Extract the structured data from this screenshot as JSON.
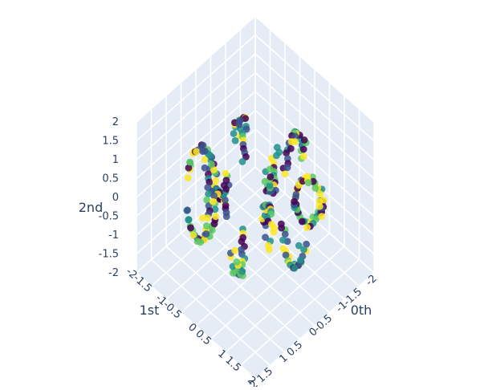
{
  "chart_data": {
    "type": "scatter3d",
    "axes": {
      "x": {
        "title": "0th",
        "ticks": [
          "-2",
          "-1.5",
          "-1",
          "-0.5",
          "0",
          "0.5",
          "1",
          "1.5",
          "2"
        ],
        "range": [
          -2,
          2
        ]
      },
      "y": {
        "title": "1st",
        "ticks": [
          "-2",
          "-1.5",
          "-1",
          "-0.5",
          "0",
          "0.5",
          "1",
          "1.5",
          "2"
        ],
        "range": [
          -2,
          2
        ]
      },
      "z": {
        "title": "2nd",
        "ticks": [
          "-2",
          "-1.5",
          "-1",
          "-0.5",
          "0",
          "0.5",
          "1",
          "1.5",
          "2"
        ],
        "range": [
          -2,
          2
        ]
      }
    },
    "grid": true,
    "colorscale": "viridis",
    "marker": {
      "opacity": 0.85
    },
    "colors": {
      "scene_background": "#e5ecf6",
      "gridline": "#ffffff",
      "text": "#2a3f5f",
      "viridis_1": "#440154",
      "viridis_2": "#3b528b",
      "viridis_3": "#21918c",
      "viridis_4": "#5ec962",
      "viridis_5": "#fde725"
    },
    "structure": {
      "description_role": "points sampled on a twisted torus-like band (3D ring of strips)",
      "num_points": 320
    }
  }
}
